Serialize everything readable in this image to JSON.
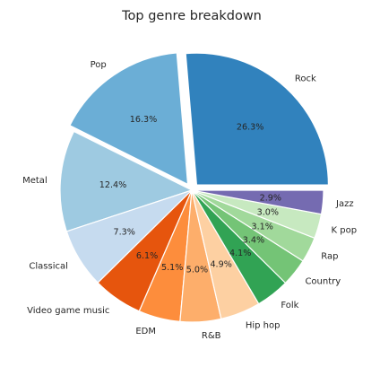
{
  "chart_data": {
    "type": "pie",
    "title": "Top genre breakdown",
    "categories": [
      "Rock",
      "Pop",
      "Metal",
      "Classical",
      "Video game music",
      "EDM",
      "R&B",
      "Hip hop",
      "Folk",
      "Country",
      "Rap",
      "K pop",
      "Jazz"
    ],
    "values": [
      26.3,
      16.3,
      12.4,
      7.3,
      6.1,
      5.1,
      5.0,
      4.9,
      4.1,
      3.4,
      3.1,
      3.0,
      2.9
    ],
    "value_labels": [
      "26.3%",
      "16.3%",
      "12.4%",
      "7.3%",
      "6.1%",
      "5.1%",
      "5.0%",
      "4.9%",
      "4.1%",
      "3.4%",
      "3.1%",
      "3.0%",
      "2.9%"
    ],
    "colors": [
      "#3182bd",
      "#6baed6",
      "#9ecae1",
      "#c6dbef",
      "#e6550d",
      "#fd8d3c",
      "#fdae6b",
      "#fdd0a2",
      "#31a354",
      "#74c476",
      "#a1d99b",
      "#c7e9c0",
      "#756bb1"
    ],
    "exploded": [
      "Rock",
      "Pop"
    ],
    "legend": "none"
  }
}
